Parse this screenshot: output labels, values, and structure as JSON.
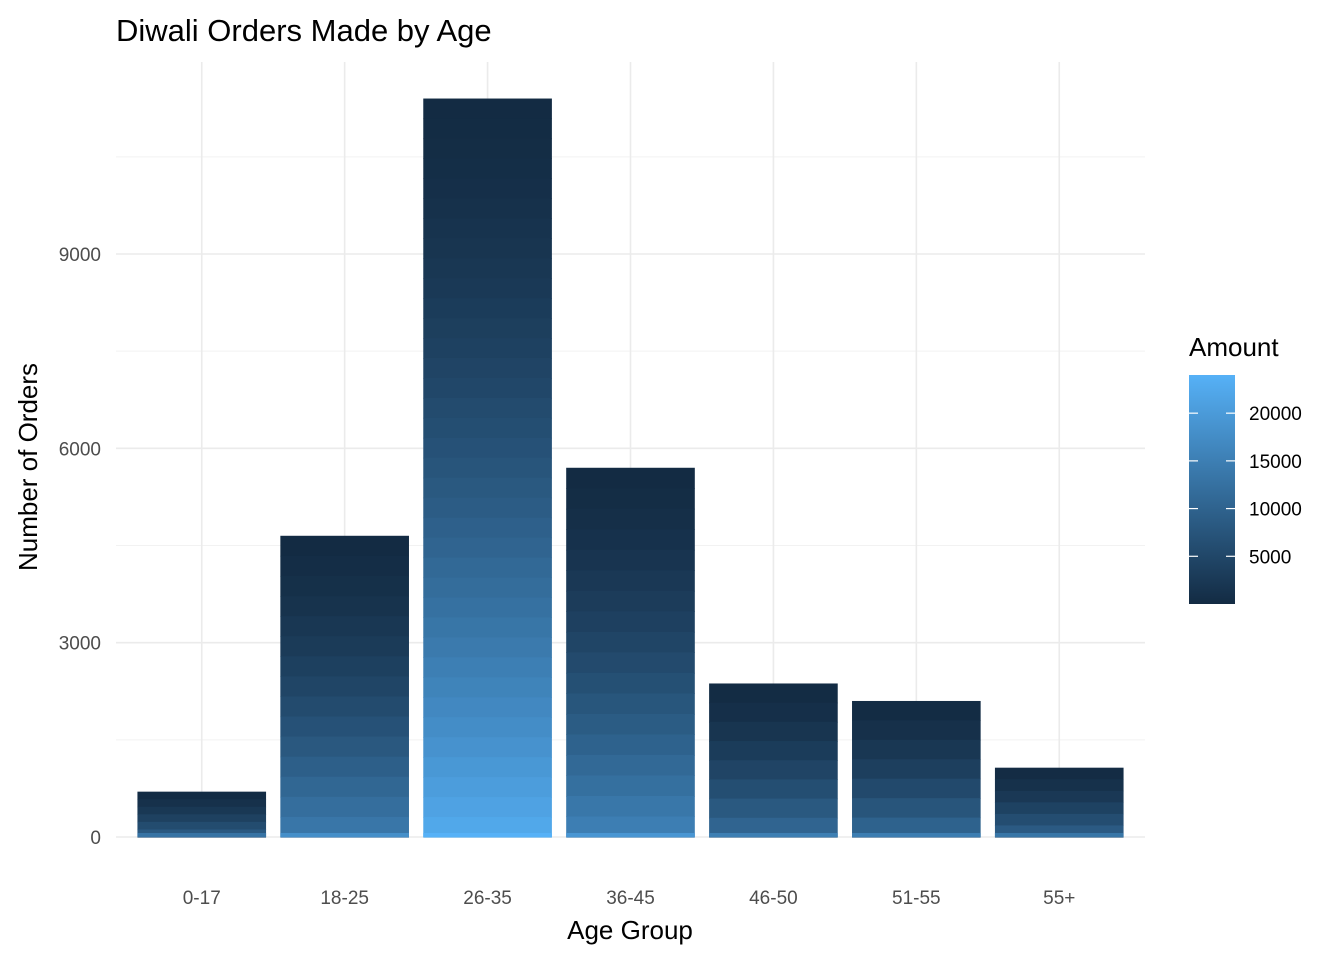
{
  "chart_data": {
    "type": "bar",
    "title": "Diwali Orders Made by Age",
    "xlabel": "Age Group",
    "ylabel": "Number of Orders",
    "categories": [
      "0-17",
      "18-25",
      "26-35",
      "36-45",
      "46-50",
      "51-55",
      "55+"
    ],
    "values": [
      700,
      4650,
      11400,
      5700,
      2370,
      2100,
      1070
    ],
    "ylim": [
      0,
      12000
    ],
    "yticks": [
      0,
      3000,
      6000,
      9000
    ],
    "yticks_labels": [
      "0",
      "3000",
      "6000",
      "9000"
    ],
    "grid": true,
    "fill_by": "Amount",
    "legend": {
      "title": "Amount",
      "placement": "right",
      "range": [
        0,
        24000
      ],
      "breaks": [
        20000,
        15000,
        10000,
        5000
      ],
      "break_labels": [
        "20000",
        "15000",
        "10000",
        "5000"
      ],
      "color_low": "#132B43",
      "color_high": "#56B1F7"
    }
  }
}
